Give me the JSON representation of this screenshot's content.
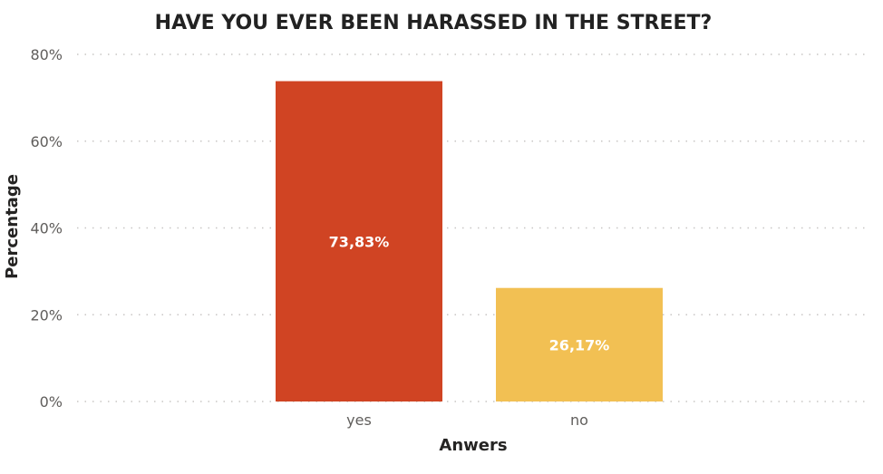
{
  "chart_data": {
    "type": "bar",
    "title": "HAVE YOU EVER BEEN HARASSED IN THE STREET?",
    "xlabel": "Anwers",
    "ylabel": "Percentage",
    "categories": [
      "yes",
      "no"
    ],
    "values": [
      73.83,
      26.17
    ],
    "data_labels": [
      "73,83%",
      "26,17%"
    ],
    "colors": [
      "#d04423",
      "#f2c053"
    ],
    "ylim": [
      0,
      80
    ],
    "yticks": [
      0,
      20,
      40,
      60,
      80
    ],
    "ytick_labels": [
      "0%",
      "20%",
      "40%",
      "60%",
      "80%"
    ],
    "grid": true,
    "grid_style": "dotted",
    "legend": "none"
  }
}
